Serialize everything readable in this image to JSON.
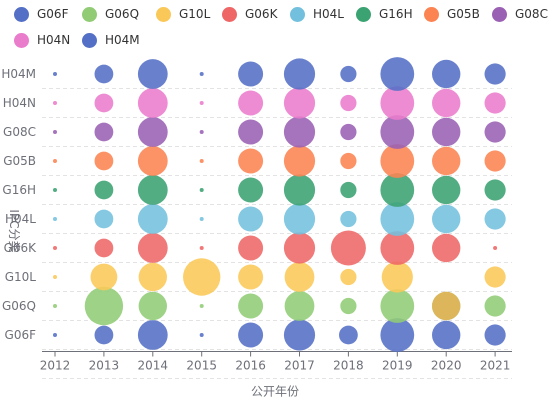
{
  "chart_data": {
    "type": "scatter",
    "subtype": "bubble",
    "xlabel": "公开年份",
    "ylabel": "IPC分类",
    "x_categories": [
      "2012",
      "2013",
      "2014",
      "2015",
      "2016",
      "2017",
      "2018",
      "2019",
      "2020",
      "2021"
    ],
    "y_categories": [
      "G06F",
      "G06Q",
      "G10L",
      "G06K",
      "H04L",
      "G16H",
      "G05B",
      "G08C",
      "H04N",
      "H04M"
    ],
    "legend_position": "top",
    "grid": "horizontal-dashed",
    "series": [
      {
        "name": "G06F",
        "color": "#5470c6",
        "values": [
          1,
          3,
          9,
          1,
          6,
          10,
          3,
          12,
          8,
          4
        ]
      },
      {
        "name": "G06Q",
        "color": "#91cc75",
        "values": [
          1,
          16,
          8,
          1,
          6,
          9,
          2,
          12,
          8,
          4
        ]
      },
      {
        "name": "G10L",
        "color": "#fac858",
        "values": [
          1,
          7,
          8,
          15,
          6,
          9,
          2,
          10,
          0,
          4
        ]
      },
      {
        "name": "G06K",
        "color": "#ee6666",
        "values": [
          1,
          3,
          9,
          1,
          6,
          10,
          13,
          12,
          8,
          1
        ]
      },
      {
        "name": "H04L",
        "color": "#73c0de",
        "values": [
          1,
          3,
          9,
          1,
          6,
          10,
          2,
          12,
          8,
          4
        ]
      },
      {
        "name": "G16H",
        "color": "#3ba272",
        "values": [
          1,
          3,
          9,
          1,
          6,
          10,
          2,
          12,
          8,
          4
        ]
      },
      {
        "name": "G05B",
        "color": "#fc8452",
        "values": [
          1,
          3,
          9,
          1,
          6,
          10,
          2,
          12,
          8,
          4
        ]
      },
      {
        "name": "G08C",
        "color": "#9a60b4",
        "values": [
          1,
          3,
          9,
          1,
          6,
          10,
          2,
          12,
          8,
          4
        ]
      },
      {
        "name": "H04N",
        "color": "#ea7ccc",
        "values": [
          1,
          3,
          9,
          1,
          6,
          10,
          2,
          12,
          8,
          4
        ]
      },
      {
        "name": "H04M",
        "color": "#5470c6",
        "values": [
          1,
          3,
          9,
          1,
          6,
          10,
          2,
          12,
          8,
          4
        ]
      }
    ],
    "legend": [
      {
        "name": "G06F",
        "color": "#5470c6"
      },
      {
        "name": "G06Q",
        "color": "#91cc75"
      },
      {
        "name": "G10L",
        "color": "#fac858"
      },
      {
        "name": "G06K",
        "color": "#ee6666"
      },
      {
        "name": "H04L",
        "color": "#73c0de"
      },
      {
        "name": "G16H",
        "color": "#3ba272"
      },
      {
        "name": "G05B",
        "color": "#fc8452"
      },
      {
        "name": "G08C",
        "color": "#9a60b4"
      },
      {
        "name": "H04N",
        "color": "#ea7ccc"
      },
      {
        "name": "H04M",
        "color": "#5470c6"
      }
    ],
    "overlays": [
      {
        "series": "G06Q",
        "x": "2020",
        "color": "#e0b45a",
        "value": 8
      }
    ]
  }
}
